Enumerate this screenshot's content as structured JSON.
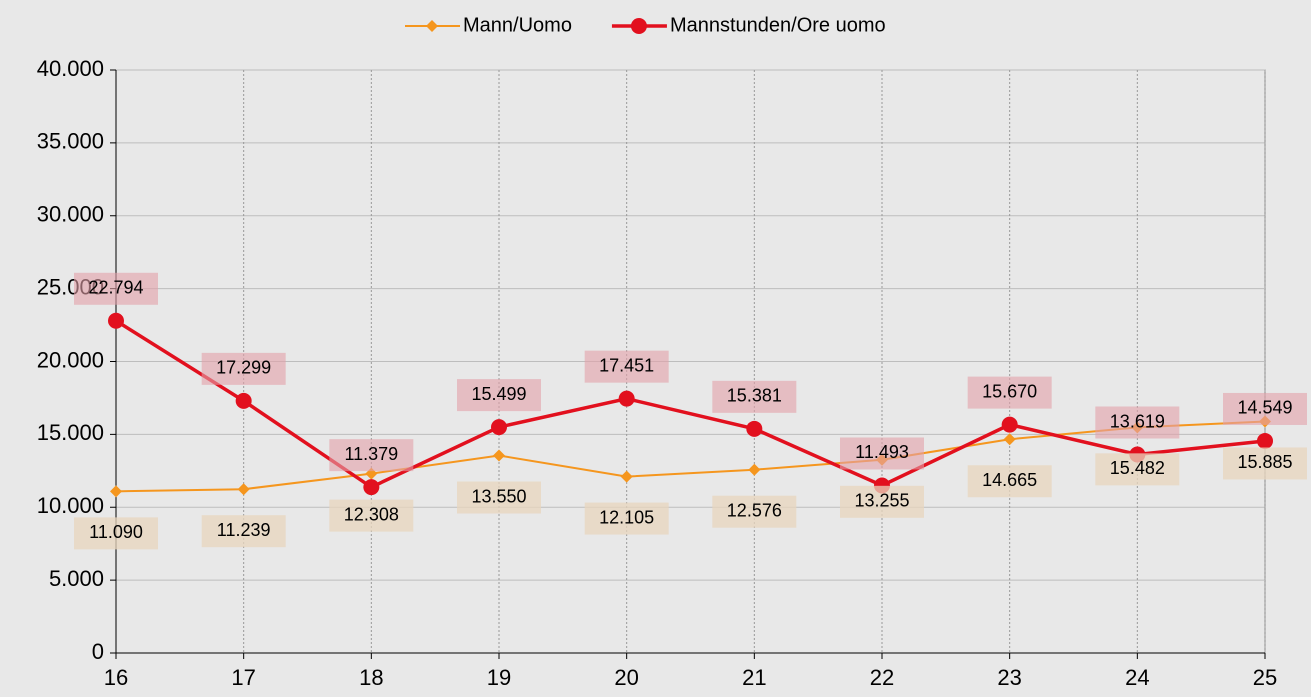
{
  "chart_data": {
    "type": "line",
    "categories": [
      "16",
      "17",
      "18",
      "19",
      "20",
      "21",
      "22",
      "23",
      "24",
      "25"
    ],
    "series": [
      {
        "name": "Mann/Uomo",
        "color": "#f5961e",
        "marker": "diamond",
        "values": [
          11090,
          11239,
          12308,
          13550,
          12105,
          12576,
          13255,
          14665,
          15482,
          15885
        ],
        "value_labels": [
          "11.090",
          "11.239",
          "12.308",
          "13.550",
          "12.105",
          "12.576",
          "13.255",
          "14.665",
          "15.482",
          "15.885"
        ]
      },
      {
        "name": "Mannstunden/Ore uomo",
        "color": "#e2101e",
        "marker": "circle",
        "values": [
          22794,
          17299,
          11379,
          15499,
          17451,
          15381,
          11493,
          15670,
          13619,
          14549
        ],
        "value_labels": [
          "22.794",
          "17.299",
          "11.379",
          "15.499",
          "17.451",
          "15.381",
          "11.493",
          "15.670",
          "13.619",
          "14.549"
        ]
      }
    ],
    "ylim": [
      0,
      40000
    ],
    "yticks": [
      0,
      {
        "value": 5000,
        "label": "5.000"
      },
      {
        "value": 10000,
        "label": "10.000"
      },
      {
        "value": 15000,
        "label": "15.000"
      },
      {
        "value": 20000,
        "label": "20.000"
      },
      {
        "value": 25000,
        "label": "25.000"
      },
      {
        "value": 30000,
        "label": "30.000"
      },
      {
        "value": 35000,
        "label": "35.000"
      },
      {
        "value": 40000,
        "label": "40.000"
      }
    ],
    "grid": true,
    "legend": "top"
  }
}
